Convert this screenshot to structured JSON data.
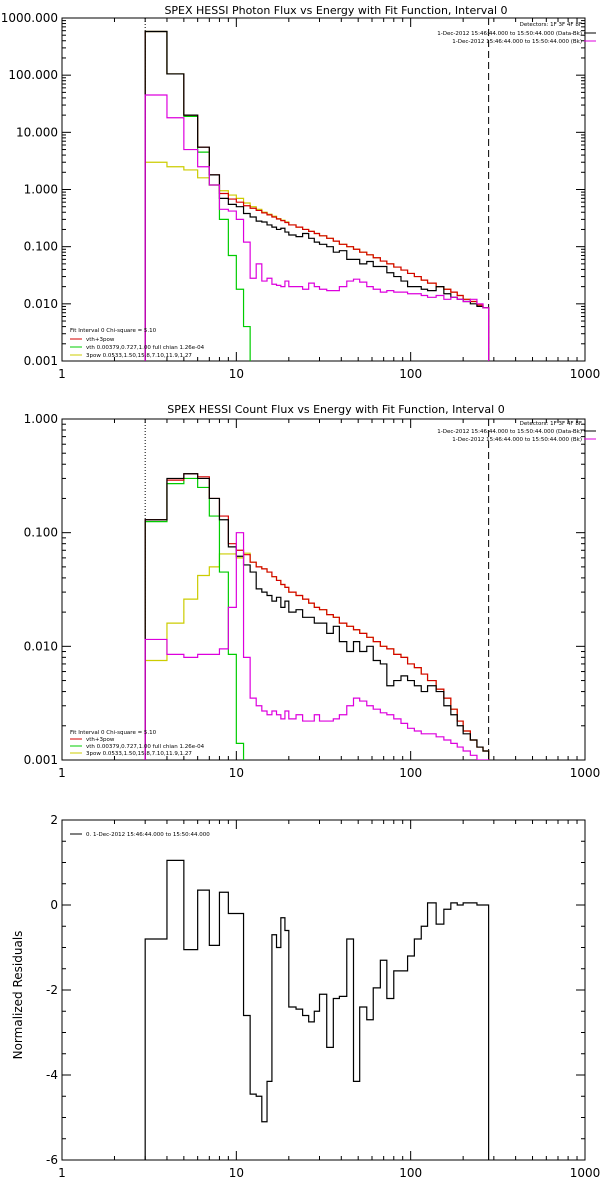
{
  "chart_data": [
    {
      "type": "line",
      "title": "SPEX HESSI Photon Flux vs Energy with Fit Function, Interval 0",
      "scale": {
        "x": "log",
        "y": "log"
      },
      "xlim": [
        1,
        1000
      ],
      "ylim": [
        0.001,
        1000
      ],
      "x_ticks": [
        "1",
        "10",
        "100",
        "1000"
      ],
      "y_ticks": [
        "0.001",
        "0.010",
        "0.100",
        "1.000",
        "10.000",
        "100.000",
        "1000.000"
      ],
      "header": [
        "Detectors: 1F 3F 4F 8F",
        "1-Dec-2012 15:46:44.000 to 15:50:44.000 (Data-Bk)",
        "1-Dec-2012 15:46:44.000 to 15:50:44.000 (Bk)"
      ],
      "legend": [
        "Fit Interval 0   Chi-square = 5.10",
        "vth+3pow",
        "vth 0.00379,0.727,1.00  full chian 1.26e-04",
        "3pow 0.0533,1.50,15.8,7.10,11.9,1.27"
      ],
      "vlines": [
        {
          "x": 3,
          "style": "dotted"
        },
        {
          "x": 280,
          "style": "dashed"
        }
      ],
      "colors": {
        "data": "#000000",
        "total": "#d40000",
        "vth": "#00cc00",
        "power": "#cccc00",
        "background": "#dd00dd"
      },
      "edges": [
        3,
        4,
        5,
        6,
        7,
        8,
        9,
        10,
        11,
        12,
        13,
        14,
        15,
        16,
        17,
        18,
        19,
        20,
        22,
        24,
        26,
        28,
        30,
        33,
        36,
        39,
        43,
        47,
        51,
        56,
        61,
        67,
        73,
        80,
        88,
        96,
        105,
        115,
        125,
        140,
        155,
        170,
        185,
        200,
        220,
        240,
        260,
        280
      ],
      "series": [
        {
          "key": "power",
          "values": [
            3,
            2.5,
            2.2,
            1.6,
            1.2,
            0.95,
            0.8,
            0.7,
            0.58,
            0.5,
            0.45,
            0.4,
            0.37,
            0.34,
            0.31,
            0.29,
            0.27,
            0.24,
            0.22,
            0.2,
            0.185,
            0.17,
            0.155,
            0.14,
            0.125,
            0.11,
            0.1,
            0.09,
            0.08,
            0.072,
            0.064,
            0.056,
            0.05,
            0.044,
            0.039,
            0.034,
            0.03,
            0.026,
            0.023,
            0.02,
            0.018,
            0.016,
            0.014,
            0.012,
            0.011,
            0.0095,
            0.0085
          ]
        },
        {
          "key": "vth",
          "values": [
            580,
            105,
            19,
            4.5,
            1.2,
            0.3,
            0.07,
            0.018,
            0.004,
            0.0009
          ]
        },
        {
          "key": "total",
          "values": [
            580,
            105,
            20,
            5.5,
            1.8,
            0.85,
            0.68,
            0.6,
            0.52,
            0.47,
            0.43,
            0.39,
            0.36,
            0.33,
            0.305,
            0.285,
            0.265,
            0.24,
            0.22,
            0.2,
            0.185,
            0.17,
            0.155,
            0.14,
            0.125,
            0.11,
            0.1,
            0.09,
            0.08,
            0.072,
            0.064,
            0.056,
            0.05,
            0.044,
            0.039,
            0.034,
            0.03,
            0.026,
            0.023,
            0.02,
            0.018,
            0.016,
            0.014,
            0.012,
            0.011,
            0.0095,
            0.0085
          ]
        },
        {
          "key": "data",
          "values": [
            580,
            105,
            20,
            5.5,
            1.8,
            0.7,
            0.55,
            0.5,
            0.38,
            0.33,
            0.28,
            0.27,
            0.24,
            0.22,
            0.2,
            0.21,
            0.18,
            0.16,
            0.15,
            0.17,
            0.14,
            0.12,
            0.11,
            0.1,
            0.08,
            0.085,
            0.06,
            0.06,
            0.05,
            0.055,
            0.045,
            0.045,
            0.035,
            0.03,
            0.025,
            0.02,
            0.02,
            0.018,
            0.017,
            0.02,
            0.015,
            0.013,
            0.012,
            0.011,
            0.01,
            0.009,
            0.0085
          ]
        },
        {
          "key": "background",
          "values": [
            45,
            18,
            5,
            2.5,
            1.2,
            0.45,
            0.42,
            0.3,
            0.12,
            0.028,
            0.05,
            0.025,
            0.028,
            0.022,
            0.021,
            0.02,
            0.025,
            0.02,
            0.02,
            0.018,
            0.023,
            0.02,
            0.018,
            0.017,
            0.017,
            0.02,
            0.025,
            0.027,
            0.024,
            0.02,
            0.018,
            0.016,
            0.017,
            0.016,
            0.016,
            0.015,
            0.015,
            0.014,
            0.013,
            0.014,
            0.012,
            0.013,
            0.012,
            0.011,
            0.012,
            0.01,
            0.0085
          ]
        }
      ]
    },
    {
      "type": "line",
      "title": "SPEX HESSI Count Flux vs Energy with Fit Function, Interval 0",
      "scale": {
        "x": "log",
        "y": "log"
      },
      "xlim": [
        1,
        1000
      ],
      "ylim": [
        0.001,
        1
      ],
      "x_ticks": [
        "1",
        "10",
        "100",
        "1000"
      ],
      "y_ticks": [
        "0.001",
        "0.010",
        "0.100",
        "1.000"
      ],
      "header": [
        "Detectors: 1F 3F 4F 8F",
        "1-Dec-2012 15:46:44.000 to 15:50:44.000 (Data-Bk)",
        "1-Dec-2012 15:46:44.000 to 15:50:44.000 (Bk)"
      ],
      "legend": [
        "Fit Interval 0   Chi-square = 5.10",
        "vth+3pow",
        "vth 0.00379,0.727,1.00  full chian 1.26e-04",
        "3pow 0.0533,1.50,15.8,7.10,11.9,1.27"
      ],
      "vlines": [
        {
          "x": 3,
          "style": "dotted"
        },
        {
          "x": 280,
          "style": "dashed"
        }
      ],
      "colors": {
        "data": "#000000",
        "total": "#d40000",
        "vth": "#00cc00",
        "power": "#cccc00",
        "background": "#dd00dd"
      },
      "edges": [
        3,
        4,
        5,
        6,
        7,
        8,
        9,
        10,
        11,
        12,
        13,
        14,
        15,
        16,
        17,
        18,
        19,
        20,
        22,
        24,
        26,
        28,
        30,
        33,
        36,
        39,
        43,
        47,
        51,
        56,
        61,
        67,
        73,
        80,
        88,
        96,
        105,
        115,
        125,
        140,
        155,
        170,
        185,
        200,
        220,
        240,
        260,
        280
      ],
      "series": [
        {
          "key": "power",
          "values": [
            0.0075,
            0.016,
            0.026,
            0.042,
            0.05,
            0.065,
            0.065,
            0.06,
            0.066,
            0.055,
            0.05,
            0.048,
            0.045,
            0.041,
            0.038,
            0.035,
            0.033,
            0.03,
            0.028,
            0.026,
            0.024,
            0.022,
            0.021,
            0.019,
            0.018,
            0.016,
            0.015,
            0.014,
            0.013,
            0.012,
            0.011,
            0.01,
            0.0095,
            0.0085,
            0.008,
            0.007,
            0.0065,
            0.0057,
            0.005,
            0.0042,
            0.0035,
            0.0028,
            0.0022,
            0.0018,
            0.0015,
            0.0013,
            0.0012
          ]
        },
        {
          "key": "vth",
          "values": [
            0.125,
            0.27,
            0.3,
            0.25,
            0.14,
            0.045,
            0.0085,
            0.0014
          ]
        },
        {
          "key": "total",
          "values": [
            0.13,
            0.29,
            0.33,
            0.31,
            0.2,
            0.14,
            0.08,
            0.07,
            0.064,
            0.055,
            0.05,
            0.048,
            0.045,
            0.041,
            0.038,
            0.035,
            0.033,
            0.03,
            0.028,
            0.026,
            0.024,
            0.022,
            0.021,
            0.019,
            0.018,
            0.016,
            0.015,
            0.014,
            0.013,
            0.012,
            0.011,
            0.01,
            0.0095,
            0.0085,
            0.008,
            0.007,
            0.0065,
            0.0057,
            0.005,
            0.0042,
            0.0035,
            0.0028,
            0.0022,
            0.0018,
            0.0015,
            0.0013,
            0.0012
          ]
        },
        {
          "key": "data",
          "values": [
            0.13,
            0.3,
            0.33,
            0.3,
            0.2,
            0.13,
            0.075,
            0.062,
            0.052,
            0.045,
            0.032,
            0.03,
            0.028,
            0.025,
            0.027,
            0.022,
            0.025,
            0.02,
            0.021,
            0.018,
            0.018,
            0.016,
            0.016,
            0.013,
            0.015,
            0.011,
            0.009,
            0.011,
            0.009,
            0.01,
            0.0075,
            0.007,
            0.0045,
            0.005,
            0.0055,
            0.005,
            0.0045,
            0.004,
            0.0045,
            0.004,
            0.003,
            0.0025,
            0.002,
            0.0017,
            0.0015,
            0.0013,
            0.0012
          ]
        },
        {
          "key": "background",
          "values": [
            0.0115,
            0.0085,
            0.008,
            0.0085,
            0.0085,
            0.0095,
            0.022,
            0.1,
            0.008,
            0.0035,
            0.003,
            0.0027,
            0.0025,
            0.0027,
            0.0025,
            0.0023,
            0.0027,
            0.0023,
            0.0025,
            0.0022,
            0.0022,
            0.0025,
            0.0022,
            0.0022,
            0.0023,
            0.0025,
            0.003,
            0.0035,
            0.0033,
            0.003,
            0.0028,
            0.0026,
            0.0025,
            0.0023,
            0.0021,
            0.0019,
            0.0018,
            0.0017,
            0.0017,
            0.0016,
            0.0015,
            0.0014,
            0.0013,
            0.0012,
            0.0011,
            0.001,
            0.001
          ]
        }
      ]
    },
    {
      "type": "line",
      "title": "",
      "scale": {
        "x": "log",
        "y": "linear"
      },
      "xlim": [
        1,
        1000
      ],
      "ylim": [
        -6,
        2
      ],
      "ylabel": "Normalized Residuals",
      "x_ticks": [
        "1",
        "10",
        "100",
        "1000"
      ],
      "y_ticks": [
        "-6",
        "-4",
        "-2",
        "0",
        "2"
      ],
      "legend": [
        "0. 1-Dec-2012 15:46:44.000 to 15:50:44.000"
      ],
      "edges": [
        3,
        4,
        5,
        6,
        7,
        8,
        9,
        10,
        11,
        12,
        13,
        14,
        15,
        16,
        17,
        18,
        19,
        20,
        22,
        24,
        26,
        28,
        30,
        33,
        36,
        39,
        43,
        47,
        51,
        56,
        61,
        67,
        73,
        80,
        88,
        96,
        105,
        115,
        125,
        140,
        155,
        170,
        185,
        200,
        220,
        240,
        260,
        280
      ],
      "series": [
        {
          "key": "residuals",
          "values": [
            -0.8,
            1.05,
            -1.05,
            0.35,
            -0.95,
            0.3,
            -0.2,
            -0.2,
            -2.6,
            -4.45,
            -4.5,
            -5.1,
            -4.15,
            -0.7,
            -1.0,
            -0.3,
            -0.6,
            -2.4,
            -2.45,
            -2.6,
            -2.75,
            -2.5,
            -2.1,
            -3.35,
            -2.2,
            -2.15,
            -0.8,
            -4.15,
            -2.4,
            -2.7,
            -1.95,
            -1.3,
            -2.2,
            -1.55,
            -1.55,
            -1.2,
            -0.8,
            -0.5,
            0.05,
            -0.45,
            -0.1,
            0.05,
            0.0,
            0.05,
            0.05,
            0.0,
            0.0
          ]
        }
      ]
    }
  ]
}
